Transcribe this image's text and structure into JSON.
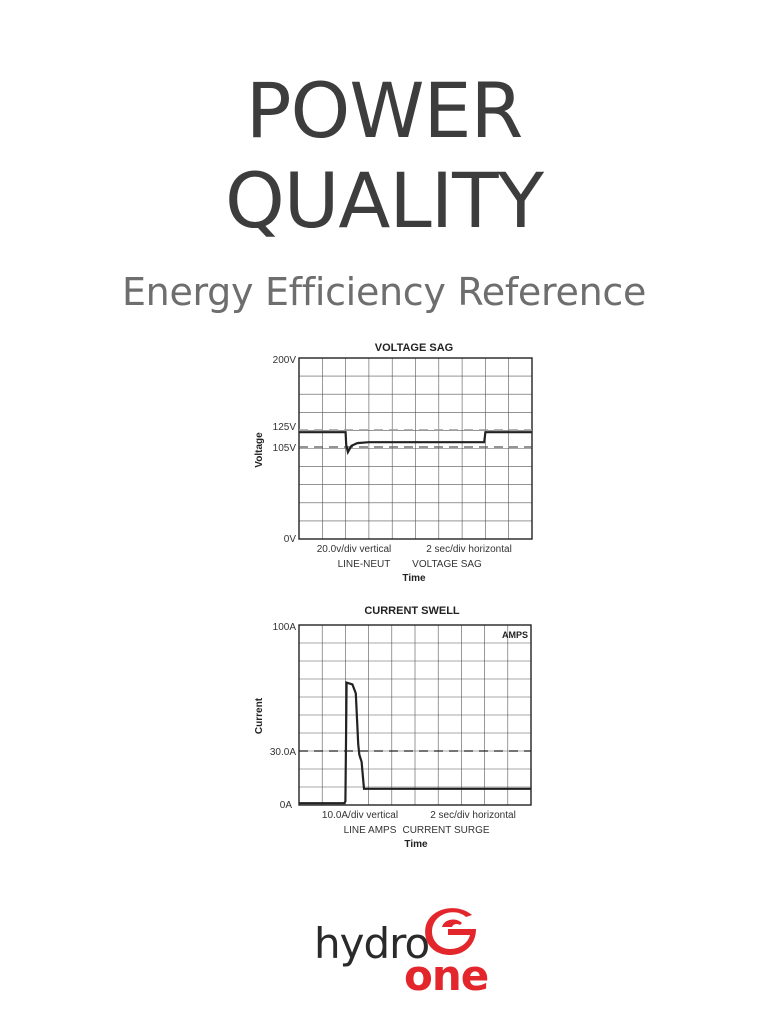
{
  "page": {
    "title_line1": "POWER",
    "title_line2": "QUALITY",
    "subtitle": "Energy Efficiency Reference"
  },
  "charts": {
    "voltage": {
      "title": "VOLTAGE SAG",
      "ylabel": "Voltage",
      "xlabel": "Time",
      "ytick_labels": [
        "200V",
        "125V",
        "105V",
        "0V"
      ],
      "footer_left_1": "20.0v/div vertical",
      "footer_right_1": "2 sec/div horizontal",
      "footer_left_2": "LINE-NEUT",
      "footer_right_2": "VOLTAGE SAG"
    },
    "current": {
      "title": "CURRENT SWELL",
      "ylabel": "Current",
      "xlabel": "Time",
      "corner_label": "AMPS",
      "ytick_labels": [
        "100A",
        "30.0A",
        "0A"
      ],
      "footer_left_1": "10.0A/div vertical",
      "footer_right_1": "2 sec/div horizontal",
      "footer_left_2": "LINE AMPS",
      "footer_right_2": "CURRENT SURGE"
    }
  },
  "chart_data": [
    {
      "type": "line",
      "title": "VOLTAGE SAG",
      "xlabel": "Time",
      "ylabel": "Voltage",
      "ylim": [
        0,
        200
      ],
      "xlim": [
        0,
        20
      ],
      "x_units": "sec",
      "y_units": "V",
      "reference_lines": [
        125,
        105
      ],
      "grid": true,
      "series": [
        {
          "x": [
            0,
            4,
            4.05,
            4.2,
            4.5,
            5,
            6,
            8,
            10,
            12,
            14,
            15.9,
            16,
            20
          ],
          "values": [
            118,
            118,
            104,
            96,
            103,
            106,
            107,
            107,
            107,
            107,
            107,
            107,
            118,
            118
          ]
        }
      ]
    },
    {
      "type": "line",
      "title": "CURRENT SWELL",
      "xlabel": "Time",
      "ylabel": "Current",
      "ylim": [
        0,
        100
      ],
      "xlim": [
        0,
        20
      ],
      "x_units": "sec",
      "y_units": "A",
      "reference_lines": [
        30
      ],
      "grid": true,
      "series": [
        {
          "x": [
            0,
            3.9,
            4,
            4.1,
            4.6,
            4.9,
            5.0,
            5.1,
            5.2,
            5.4,
            5.6,
            6,
            20
          ],
          "values": [
            1,
            1,
            2,
            68,
            67,
            62,
            48,
            34,
            28,
            24,
            9,
            9,
            9
          ]
        }
      ]
    }
  ],
  "logo": {
    "word1": "hydro",
    "word2": "one",
    "brand_color": "#e3262b"
  }
}
